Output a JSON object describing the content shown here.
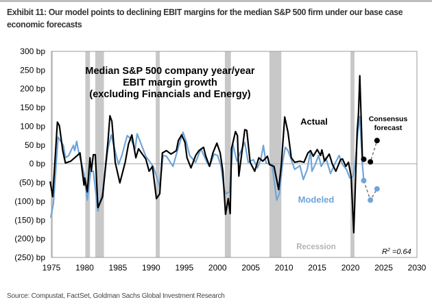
{
  "title": "Exhibit 11: Our model points to declining EBIT margins for the median S&P 500 firm under our base case economic forecasts",
  "source": "Source: Compustat, FactSet, Goldman Sachs Global Investment Research",
  "chart_data": {
    "type": "line",
    "title": "Median S&P 500 company year/year EBIT margin growth (excluding Financials and Energy)",
    "title_lines": [
      "Median S&P 500 company year/year",
      "EBIT margin growth",
      "(excluding Financials and Energy)"
    ],
    "xlim": [
      1975,
      2030
    ],
    "ylim": [
      -250,
      300
    ],
    "x_ticks": [
      1975,
      1980,
      1985,
      1990,
      1995,
      2000,
      2005,
      2010,
      2015,
      2020,
      2025,
      2030
    ],
    "y_ticks": [
      300,
      250,
      200,
      150,
      100,
      50,
      0,
      -50,
      -100,
      -150,
      -200,
      -250
    ],
    "y_tick_labels": [
      "300 bp",
      "250 bp",
      "200 bp",
      "150 bp",
      "100 bp",
      "50 bp",
      "0 bp",
      "(50) bp",
      "(100) bp",
      "(150) bp",
      "(200) bp",
      "(250) bp"
    ],
    "grid": false,
    "colors": {
      "actual": "#000000",
      "modeled": "#6fa5d8",
      "recession": "#c8c8c8",
      "recession_label": "#b3b3b3",
      "zero_line": "#a0a0a0"
    },
    "recessions": [
      [
        1974.8,
        1975.2
      ],
      [
        1980.1,
        1980.8
      ],
      [
        1981.6,
        1982.9
      ],
      [
        1990.7,
        1991.3
      ],
      [
        2001.1,
        2002.0
      ],
      [
        2007.8,
        2009.6
      ],
      [
        2020.0,
        2020.6
      ]
    ],
    "series": [
      {
        "name": "Actual",
        "x": [
          1974.8,
          1975.2,
          1975.9,
          1976.2,
          1976.7,
          1977.1,
          1977.9,
          1978.9,
          1979.3,
          1979.9,
          1980,
          1980.4,
          1980.8,
          1981,
          1981.3,
          1981.6,
          1982,
          1982.7,
          1983.5,
          1983.8,
          1984.1,
          1984.6,
          1985.3,
          1986.1,
          1986.6,
          1987.1,
          1987.7,
          1988.1,
          1989.2,
          1989.7,
          1990.2,
          1990.8,
          1991.3,
          1991.7,
          1992.3,
          1993,
          1993.8,
          1994.1,
          1994.6,
          1995.1,
          1995.4,
          1996,
          1996.7,
          1997.2,
          1997.9,
          1998.2,
          1998.8,
          1999.3,
          1999.9,
          2000.4,
          2000.8,
          2001.2,
          2001.6,
          2001.9,
          2002.1,
          2002.7,
          2003,
          2003.2,
          2004.1,
          2004.4,
          2004.9,
          2005.6,
          2006.2,
          2006.8,
          2007.5,
          2007.8,
          2008.5,
          2009.2,
          2009.6,
          2010.1,
          2010.6,
          2011.1,
          2011.6,
          2012.4,
          2013,
          2013.6,
          2014,
          2014.4,
          2015,
          2015.5,
          2015.7,
          2016.1,
          2016.8,
          2017.3,
          2017.8,
          2018.5,
          2018.8,
          2019.3,
          2019.7,
          2020.1,
          2020.5,
          2021,
          2021.2,
          2021.4,
          2021.8,
          2022
        ],
        "y": [
          -47,
          -88,
          111,
          102,
          35,
          2,
          7,
          22,
          29,
          -57,
          -38,
          -75,
          16,
          -20,
          24,
          24,
          -117,
          -88,
          58,
          128,
          113,
          4,
          -51,
          4,
          53,
          77,
          16,
          40,
          13,
          -20,
          -7,
          -93,
          -80,
          29,
          35,
          26,
          35,
          62,
          77,
          57,
          16,
          -11,
          22,
          35,
          44,
          22,
          -7,
          29,
          55,
          29,
          -20,
          -135,
          -93,
          -133,
          40,
          86,
          75,
          -33,
          91,
          89,
          4,
          -20,
          16,
          7,
          20,
          -2,
          -7,
          -69,
          -2,
          125,
          84,
          16,
          4,
          7,
          4,
          29,
          35,
          20,
          38,
          22,
          37,
          7,
          26,
          -2,
          -20,
          11,
          13,
          -7,
          4,
          -35,
          -184,
          84,
          131,
          235,
          16,
          12
        ]
      },
      {
        "name": "Modeled",
        "x": [
          1974.9,
          1975.3,
          1976,
          1976.8,
          1977.1,
          1977.6,
          1978.3,
          1978.5,
          1978.8,
          1979.1,
          1979.9,
          1980.4,
          1980.9,
          1981.3,
          1982,
          1982.7,
          1983.5,
          1984,
          1984.5,
          1985.1,
          1985.6,
          1986.4,
          1986.9,
          1987.6,
          1987.9,
          1988.4,
          1989.2,
          1990.3,
          1991,
          1991.3,
          1991.8,
          1992.3,
          1993.3,
          1994.1,
          1994.8,
          1995.3,
          1995.8,
          1996.7,
          1997.5,
          1998.4,
          1998.8,
          1999.5,
          2000,
          2000.5,
          2001,
          2001.3,
          2001.8,
          2002.3,
          2002.9,
          2003.4,
          2004.1,
          2004.6,
          2005.4,
          2006,
          2006.5,
          2006.9,
          2007.3,
          2008.2,
          2008.7,
          2008.9,
          2009.3,
          2009.8,
          2010.2,
          2010.6,
          2011.1,
          2011.6,
          2012.4,
          2012.9,
          2013.5,
          2014,
          2014.2,
          2014.7,
          2015.2,
          2015.6,
          2016.3,
          2017,
          2017.6,
          2018.3,
          2018.8,
          2019.4,
          2019.9,
          2020.4,
          2020.7,
          2021.1,
          2021.4,
          2021.8,
          2022
        ],
        "y": [
          -144,
          -106,
          71,
          49,
          16,
          22,
          49,
          35,
          60,
          31,
          -26,
          -97,
          -20,
          -20,
          -126,
          -75,
          40,
          77,
          40,
          -2,
          22,
          75,
          68,
          40,
          80,
          57,
          20,
          -7,
          -44,
          -62,
          22,
          20,
          -7,
          44,
          84,
          58,
          22,
          4,
          40,
          4,
          -7,
          26,
          22,
          -5,
          -69,
          -80,
          -75,
          53,
          7,
          29,
          57,
          4,
          11,
          -11,
          11,
          49,
          2,
          -2,
          -69,
          -97,
          -80,
          4,
          44,
          35,
          11,
          -15,
          -5,
          -42,
          -15,
          35,
          -20,
          -2,
          22,
          -7,
          16,
          -26,
          -2,
          22,
          -2,
          -15,
          -38,
          -33,
          -2,
          84,
          126,
          -2,
          -45
        ]
      }
    ],
    "forecasts": [
      {
        "name": "Consensus forecast",
        "x": [
          2022,
          2023,
          2024
        ],
        "y": [
          12,
          5,
          62
        ]
      },
      {
        "name": "Modeled forecast",
        "x": [
          2022,
          2023,
          2024
        ],
        "y": [
          -45,
          -97,
          -67
        ]
      }
    ],
    "annotations": {
      "actual": "Actual",
      "modeled": "Modeled",
      "consensus": [
        "Consensus",
        "forecast"
      ],
      "recession": "Recession",
      "r2_label": "R",
      "r2_sup": "2",
      "r2_value": " =0.64"
    }
  }
}
